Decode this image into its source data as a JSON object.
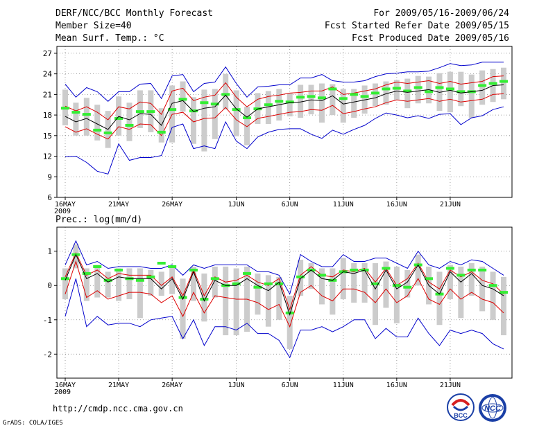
{
  "header": {
    "title": "DERF/NCC/BCC Monthly Forecast",
    "member": "Member Size=40",
    "variable": "Mean Surf. Temp.: °C",
    "period": "For 2009/05/16-2009/06/24",
    "started": "Fcst Started Refer Date 2009/05/15",
    "produced": "Fcst Produced Date 2009/05/16"
  },
  "footer": {
    "url": "http://cmdp.ncc.cma.gov.cn",
    "grads": "GrADS: COLA/IGES",
    "logo_bcc": "BCC",
    "logo_ncc": "NCC"
  },
  "colors": {
    "bar": "#cccccc",
    "green": "#33ee33",
    "red": "#dd0000",
    "blue": "#0000cc",
    "black": "#000000"
  },
  "chart_data": [
    {
      "type": "line",
      "title": "Mean Surf. Temp.: °C",
      "xlabel": "",
      "ylabel": "",
      "ylim": [
        6,
        28
      ],
      "yticks": [
        6,
        9,
        12,
        15,
        18,
        21,
        24,
        27
      ],
      "xticks": [
        {
          "day": 1,
          "label": "16MAY"
        },
        {
          "day": 6,
          "label": "21MAY"
        },
        {
          "day": 11,
          "label": "26MAY"
        },
        {
          "day": 17,
          "label": "1JUN"
        },
        {
          "day": 22,
          "label": "6JUN"
        },
        {
          "day": 27,
          "label": "11JUN"
        },
        {
          "day": 32,
          "label": "16JUN"
        },
        {
          "day": 37,
          "label": "21JUN"
        }
      ],
      "year_label": "2009",
      "x_start": 1,
      "x_end": 40,
      "series": [
        {
          "name": "ensemble_mean",
          "values": [
            17.8,
            17.0,
            17.5,
            16.7,
            15.9,
            17.8,
            17.3,
            18.2,
            18.1,
            16.5,
            19.7,
            20.1,
            18.5,
            19.0,
            19.2,
            20.9,
            18.9,
            17.7,
            18.9,
            19.2,
            19.5,
            19.8,
            19.9,
            20.2,
            20.1,
            20.8,
            19.6,
            19.9,
            20.2,
            20.5,
            21.1,
            21.5,
            21.3,
            21.5,
            21.7,
            21.3,
            21.6,
            21.2,
            21.4,
            21.6,
            22.3,
            22.4
          ]
        },
        {
          "name": "upper_red",
          "values": [
            19.3,
            18.6,
            19.2,
            18.4,
            17.3,
            19.2,
            18.9,
            19.9,
            19.7,
            18.1,
            21.5,
            21.9,
            20.1,
            20.6,
            20.9,
            22.7,
            20.6,
            19.2,
            20.3,
            20.7,
            20.9,
            21.2,
            21.3,
            21.5,
            21.5,
            22.1,
            21.0,
            21.2,
            21.5,
            21.8,
            22.4,
            22.8,
            22.6,
            22.8,
            23.0,
            22.6,
            22.9,
            22.5,
            22.7,
            22.9,
            23.6,
            23.7
          ]
        },
        {
          "name": "lower_red",
          "values": [
            16.3,
            15.5,
            16.0,
            15.2,
            14.5,
            16.3,
            15.9,
            16.7,
            16.6,
            15.0,
            18.1,
            18.4,
            17.0,
            17.5,
            17.6,
            19.1,
            17.3,
            16.3,
            17.5,
            17.8,
            18.1,
            18.4,
            18.5,
            18.8,
            18.7,
            19.4,
            18.2,
            18.5,
            18.9,
            19.2,
            19.8,
            20.2,
            20.0,
            20.2,
            20.4,
            20.0,
            20.3,
            19.9,
            20.1,
            20.3,
            21.0,
            21.1
          ]
        },
        {
          "name": "upper_blue",
          "values": [
            22.5,
            20.6,
            22.0,
            21.4,
            20.0,
            21.4,
            21.4,
            22.5,
            22.6,
            20.4,
            23.7,
            23.9,
            21.4,
            22.6,
            22.8,
            25.0,
            22.6,
            20.6,
            22.1,
            22.2,
            22.4,
            22.4,
            23.4,
            23.4,
            23.9,
            23.0,
            22.8,
            22.8,
            23.0,
            23.6,
            24.0,
            24.1,
            24.3,
            24.3,
            24.4,
            24.9,
            25.5,
            25.2,
            25.3,
            25.7,
            25.7,
            25.7
          ]
        },
        {
          "name": "lower_blue",
          "values": [
            11.9,
            12.0,
            11.1,
            9.8,
            9.4,
            13.8,
            11.4,
            11.8,
            11.8,
            12.1,
            16.2,
            16.7,
            13.1,
            13.5,
            13.1,
            17.0,
            14.2,
            13.1,
            14.8,
            15.5,
            15.9,
            16.0,
            16.0,
            15.2,
            14.6,
            15.8,
            15.2,
            15.9,
            16.5,
            17.5,
            18.3,
            18.0,
            17.6,
            17.9,
            17.5,
            18.1,
            18.2,
            16.6,
            17.6,
            17.9,
            18.8,
            19.2
          ]
        },
        {
          "name": "box_high",
          "values": [
            21.7,
            19.8,
            20.5,
            19.5,
            18.6,
            20.7,
            19.8,
            21.6,
            21.6,
            19.0,
            22.3,
            22.9,
            20.6,
            21.7,
            21.8,
            24.0,
            21.6,
            19.2,
            21.2,
            21.5,
            21.8,
            21.2,
            22.4,
            22.4,
            22.6,
            22.5,
            21.8,
            21.8,
            22.3,
            22.6,
            22.9,
            23.1,
            23.3,
            23.7,
            23.6,
            24.1,
            24.3,
            24.3,
            23.9,
            24.5,
            24.7,
            24.9
          ]
        },
        {
          "name": "box_low",
          "values": [
            16.5,
            15.0,
            15.0,
            14.3,
            13.2,
            15.0,
            14.2,
            16.1,
            15.5,
            14.0,
            14.0,
            18.5,
            13.8,
            12.7,
            14.5,
            18.8,
            14.9,
            13.6,
            16.7,
            16.7,
            17.2,
            17.8,
            17.6,
            18.1,
            16.9,
            18.0,
            16.9,
            17.6,
            18.2,
            19.3,
            19.5,
            20.2,
            19.0,
            19.7,
            19.7,
            18.6,
            18.4,
            19.3,
            17.6,
            19.5,
            19.9,
            20.3
          ]
        },
        {
          "name": "green_marker",
          "values": [
            19.0,
            18.4,
            18.1,
            15.8,
            15.4,
            17.5,
            16.5,
            18.5,
            18.5,
            15.5,
            18.8,
            20.3,
            18.6,
            19.8,
            19.6,
            21.0,
            18.8,
            17.6,
            18.9,
            19.5,
            20.0,
            19.9,
            20.6,
            20.7,
            20.5,
            21.8,
            20.4,
            21.0,
            20.7,
            21.2,
            21.8,
            21.9,
            21.5,
            22.0,
            21.4,
            22.0,
            21.8,
            21.4,
            21.4,
            22.3,
            22.6,
            22.9
          ]
        }
      ]
    },
    {
      "type": "line",
      "title": "Prec.: log(mm/d)",
      "xlabel": "",
      "ylabel": "",
      "ylim": [
        -2.7,
        1.7
      ],
      "yticks": [
        -2,
        -1,
        0,
        1
      ],
      "xticks": [
        {
          "day": 1,
          "label": "16MAY"
        },
        {
          "day": 6,
          "label": "21MAY"
        },
        {
          "day": 11,
          "label": "26MAY"
        },
        {
          "day": 17,
          "label": "1JUN"
        },
        {
          "day": 22,
          "label": "6JUN"
        },
        {
          "day": 27,
          "label": "11JUN"
        },
        {
          "day": 32,
          "label": "16JUN"
        },
        {
          "day": 37,
          "label": "21JUN"
        }
      ],
      "year_label": "2009",
      "x_start": 1,
      "x_end": 40,
      "series": [
        {
          "name": "ensemble_mean",
          "values": [
            0.15,
            0.9,
            0.2,
            0.35,
            0.1,
            0.25,
            0.2,
            0.2,
            0.2,
            -0.1,
            0.2,
            -0.4,
            0.4,
            -0.45,
            0.15,
            0.0,
            0.0,
            0.2,
            0.0,
            -0.15,
            0.1,
            -0.85,
            0.2,
            0.45,
            0.2,
            0.15,
            0.4,
            0.35,
            0.45,
            -0.1,
            0.45,
            -0.1,
            0.1,
            0.6,
            0.0,
            -0.25,
            0.4,
            0.1,
            0.35,
            0.0,
            -0.1,
            -0.3
          ]
        },
        {
          "name": "upper_red",
          "values": [
            0.25,
            0.95,
            0.3,
            0.45,
            0.2,
            0.35,
            0.3,
            0.3,
            0.3,
            0.0,
            0.25,
            -0.3,
            0.45,
            -0.3,
            0.25,
            0.1,
            0.15,
            0.3,
            0.1,
            0.0,
            0.2,
            -0.7,
            0.3,
            0.55,
            0.3,
            0.25,
            0.45,
            0.4,
            0.5,
            0.1,
            0.5,
            0.0,
            0.2,
            0.65,
            0.1,
            -0.1,
            0.45,
            0.25,
            0.4,
            0.15,
            0.05,
            -0.25
          ]
        },
        {
          "name": "lower_red",
          "values": [
            -0.25,
            0.7,
            -0.35,
            -0.15,
            -0.4,
            -0.3,
            -0.2,
            -0.2,
            -0.25,
            -0.5,
            -0.3,
            -0.9,
            -0.2,
            -0.8,
            -0.3,
            -0.35,
            -0.4,
            -0.4,
            -0.5,
            -0.7,
            -0.55,
            -1.2,
            -0.2,
            0.0,
            -0.3,
            -0.45,
            -0.1,
            -0.1,
            -0.2,
            -0.5,
            -0.1,
            -0.5,
            -0.3,
            0.2,
            -0.4,
            -0.55,
            -0.1,
            -0.4,
            -0.2,
            -0.4,
            -0.5,
            -0.8
          ]
        },
        {
          "name": "upper_blue",
          "values": [
            0.6,
            1.3,
            0.6,
            0.7,
            0.5,
            0.55,
            0.55,
            0.55,
            0.5,
            0.5,
            0.6,
            0.3,
            0.6,
            0.5,
            0.6,
            0.6,
            0.6,
            0.6,
            0.4,
            0.4,
            0.3,
            -0.25,
            0.9,
            0.7,
            0.55,
            0.55,
            0.9,
            0.7,
            0.7,
            0.8,
            0.8,
            0.65,
            0.5,
            1.0,
            0.6,
            0.5,
            0.7,
            0.6,
            0.75,
            0.7,
            0.5,
            0.3
          ]
        },
        {
          "name": "lower_blue",
          "values": [
            -0.9,
            0.2,
            -1.2,
            -0.9,
            -1.15,
            -1.1,
            -1.1,
            -1.2,
            -1.0,
            -0.95,
            -0.9,
            -1.55,
            -1.0,
            -1.75,
            -1.2,
            -1.2,
            -1.3,
            -1.1,
            -1.4,
            -1.4,
            -1.6,
            -2.1,
            -1.3,
            -1.3,
            -1.2,
            -1.35,
            -1.2,
            -1.0,
            -1.0,
            -1.55,
            -1.25,
            -1.5,
            -1.5,
            -0.95,
            -1.4,
            -1.75,
            -1.3,
            -1.4,
            -1.3,
            -1.4,
            -1.7,
            -1.85
          ]
        },
        {
          "name": "box_high",
          "values": [
            0.5,
            1.2,
            0.5,
            0.6,
            0.4,
            0.5,
            0.5,
            0.5,
            0.45,
            0.4,
            0.55,
            0.2,
            0.55,
            0.35,
            0.55,
            0.55,
            0.5,
            0.55,
            0.35,
            0.3,
            0.25,
            -0.3,
            0.75,
            0.65,
            0.5,
            0.5,
            0.8,
            0.65,
            0.65,
            0.65,
            0.7,
            0.55,
            0.45,
            0.9,
            0.55,
            0.4,
            0.6,
            0.55,
            0.65,
            0.55,
            0.4,
            0.25
          ]
        },
        {
          "name": "box_low",
          "values": [
            -0.4,
            0.5,
            -0.45,
            -0.35,
            -0.35,
            -0.45,
            -0.4,
            -0.95,
            -0.3,
            -0.3,
            -0.25,
            -1.55,
            -0.45,
            -1.05,
            -0.35,
            -1.45,
            -1.45,
            -1.35,
            -0.85,
            -1.2,
            -1.0,
            -1.85,
            -0.3,
            -0.1,
            -0.55,
            -0.85,
            -0.4,
            -0.5,
            -0.5,
            -1.15,
            -0.65,
            -1.1,
            -0.35,
            0.0,
            -0.55,
            -1.15,
            -0.4,
            -0.95,
            -0.3,
            -0.75,
            -1.0,
            -1.45
          ]
        },
        {
          "name": "green_marker",
          "values": [
            0.2,
            0.9,
            0.35,
            0.55,
            0.15,
            0.45,
            0.2,
            0.15,
            0.25,
            0.65,
            0.55,
            -0.35,
            0.45,
            -0.4,
            0.2,
            0.0,
            0.05,
            0.35,
            -0.05,
            0.05,
            0.05,
            -0.8,
            0.25,
            0.45,
            0.3,
            0.15,
            0.4,
            0.45,
            0.45,
            0.05,
            0.5,
            0.0,
            -0.05,
            0.6,
            0.2,
            -0.25,
            0.5,
            0.3,
            0.45,
            0.45,
            0.0,
            -0.2
          ]
        }
      ]
    }
  ]
}
